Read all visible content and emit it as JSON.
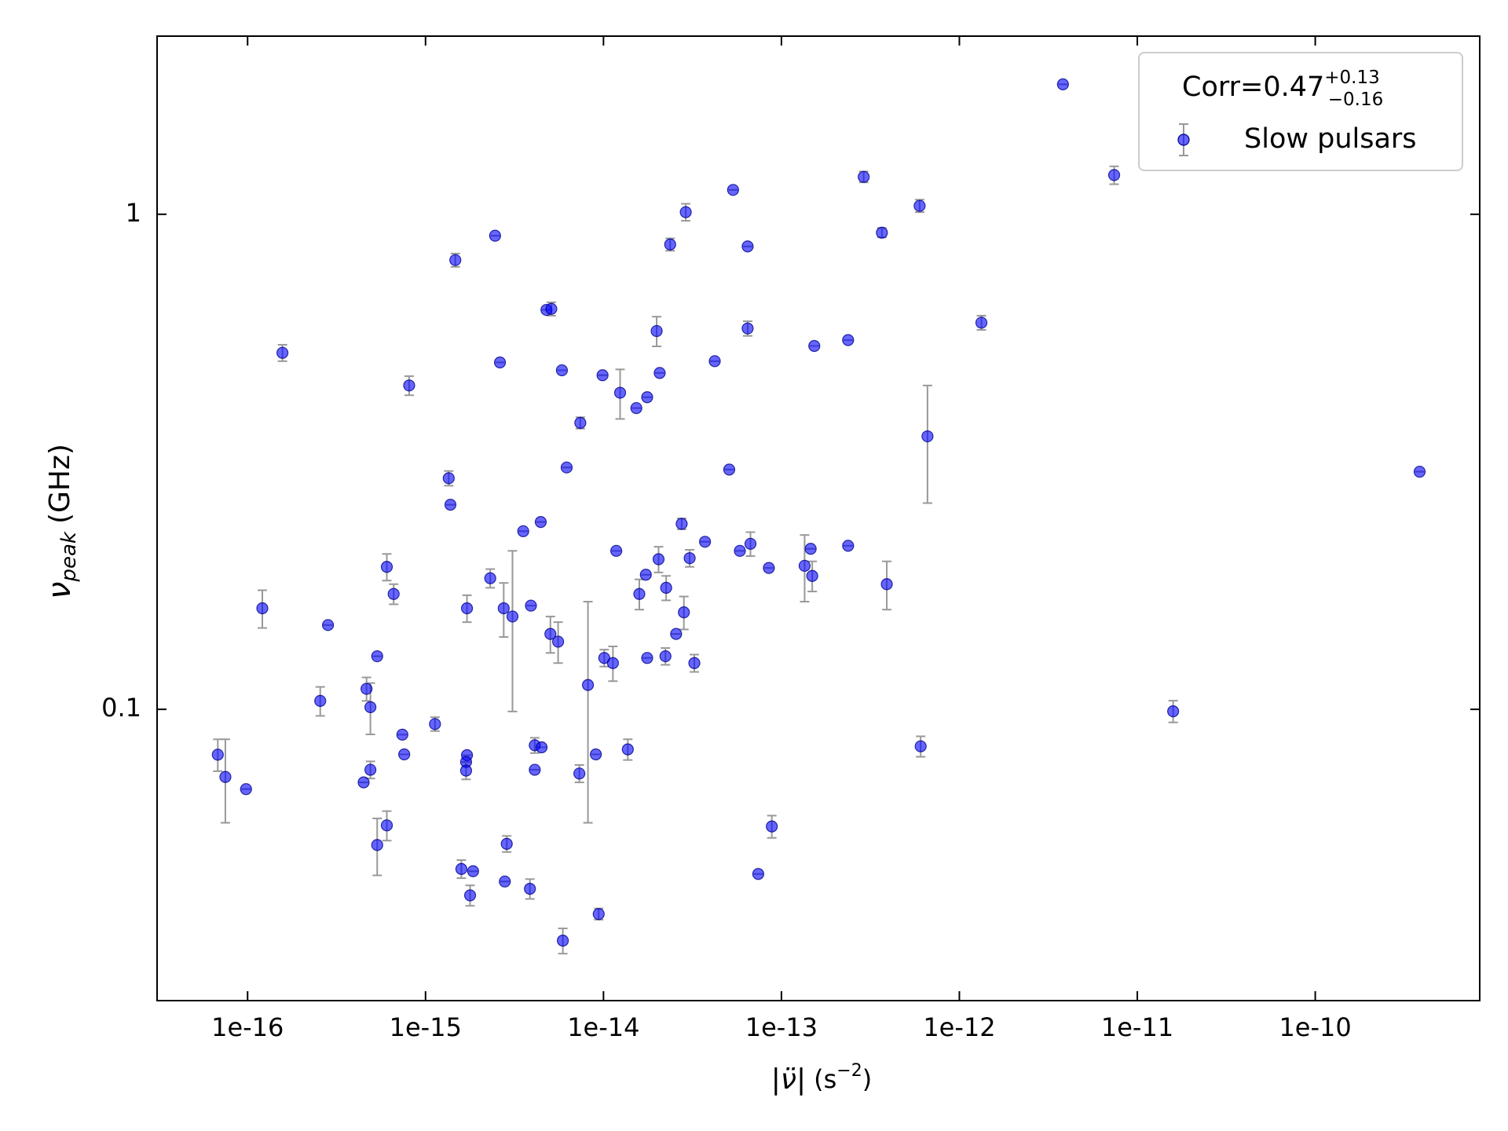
{
  "chart_data": {
    "type": "scatter",
    "xlabel": {
      "symbol": "|ν̈|",
      "unit_open": "(s",
      "unit_exp": "−2",
      "unit_close": ")"
    },
    "ylabel": {
      "symbol": "ν",
      "subscript": "peak",
      "unit": "(GHz)"
    },
    "xscale": "log",
    "yscale": "log",
    "xlim": [
      3.1e-17,
      8.4e-10
    ],
    "ylim": [
      0.0258,
      2.29
    ],
    "xticks": [
      {
        "value": 1e-16,
        "label": "1e-16"
      },
      {
        "value": 1e-15,
        "label": "1e-15"
      },
      {
        "value": 1e-14,
        "label": "1e-14"
      },
      {
        "value": 1e-13,
        "label": "1e-13"
      },
      {
        "value": 1e-12,
        "label": "1e-12"
      },
      {
        "value": 1e-11,
        "label": "1e-11"
      },
      {
        "value": 1e-10,
        "label": "1e-10"
      }
    ],
    "yticks": [
      0.1,
      1
    ],
    "legend": {
      "title": "Corr=0.47",
      "title_sup": "+0.13",
      "title_sub": "−0.16",
      "location": "upper right"
    },
    "series": [
      {
        "name": "Slow pulsars",
        "color": "#0000ff",
        "edge_color": "#00008b",
        "error_color": "#999999",
        "x": [
          6.8e-17,
          7.5e-17,
          9.8e-17,
          1.21e-16,
          1.57e-16,
          2.83e-16,
          2.56e-16,
          4.66e-16,
          4.9e-16,
          4.49e-16,
          4.9e-16,
          5.35e-16,
          6.06e-16,
          6.62e-16,
          6.06e-16,
          5.35e-16,
          7.41e-16,
          7.59e-16,
          8.09e-16,
          1.13e-15,
          1.35e-15,
          1.38e-15,
          1.47e-15,
          1.71e-15,
          1.71e-15,
          1.69e-15,
          1.69e-15,
          1.59e-15,
          1.85e-15,
          1.78e-15,
          2.31e-15,
          2.46e-15,
          2.62e-15,
          2.75e-15,
          3.08e-15,
          2.86e-15,
          2.79e-15,
          3.54e-15,
          3.91e-15,
          3.86e-15,
          4.11e-15,
          4.11e-15,
          4.49e-15,
          4.44e-15,
          4.78e-15,
          5.09e-15,
          5.03e-15,
          5.56e-15,
          5.84e-15,
          6.21e-15,
          5.91e-15,
          7.41e-15,
          7.32e-15,
          8.18e-15,
          9.06e-15,
          9.4e-15,
          9.88e-15,
          1.01e-14,
          1.13e-14,
          1.18e-14,
          1.24e-14,
          1.37e-14,
          1.53e-14,
          1.59e-14,
          1.73e-14,
          1.76e-14,
          1.76e-14,
          1.99e-14,
          2.04e-14,
          2.07e-14,
          2.25e-14,
          2.23e-14,
          2.37e-14,
          2.56e-14,
          2.75e-14,
          2.83e-14,
          2.9e-14,
          3.05e-14,
          3.24e-14,
          3.72e-14,
          4.22e-14,
          5.09e-14,
          5.35e-14,
          5.84e-14,
          6.46e-14,
          6.46e-14,
          6.7e-14,
          7.41e-14,
          8.5e-14,
          8.83e-14,
          1.35e-13,
          1.46e-13,
          1.49e-13,
          1.53e-13,
          2.37e-13,
          2.37e-13,
          2.9e-13,
          3.67e-13,
          3.91e-13,
          5.98e-13,
          6.06e-13,
          6.62e-13,
          1.33e-12,
          3.82e-12,
          7.41e-12,
          1.59e-11,
          3.86e-10
        ],
        "values": [
          0.081,
          0.073,
          0.069,
          0.16,
          0.525,
          0.148,
          0.104,
          0.11,
          0.101,
          0.0712,
          0.0755,
          0.128,
          0.194,
          0.171,
          0.0583,
          0.0532,
          0.0889,
          0.0811,
          0.451,
          0.0934,
          0.293,
          0.259,
          0.808,
          0.16,
          0.0808,
          0.0783,
          0.0752,
          0.0476,
          0.0471,
          0.0421,
          0.184,
          0.905,
          0.502,
          0.16,
          0.154,
          0.0535,
          0.0449,
          0.229,
          0.162,
          0.0434,
          0.0846,
          0.0755,
          0.0838,
          0.239,
          0.641,
          0.644,
          0.142,
          0.137,
          0.484,
          0.308,
          0.0341,
          0.379,
          0.0742,
          0.112,
          0.0811,
          0.0386,
          0.473,
          0.127,
          0.124,
          0.209,
          0.436,
          0.083,
          0.406,
          0.171,
          0.187,
          0.427,
          0.127,
          0.581,
          0.201,
          0.478,
          0.176,
          0.128,
          0.869,
          0.142,
          0.237,
          0.157,
          1.01,
          0.202,
          0.124,
          0.218,
          0.505,
          0.305,
          1.12,
          0.209,
          0.588,
          0.861,
          0.216,
          0.0465,
          0.193,
          0.058,
          0.195,
          0.211,
          0.186,
          0.542,
          0.557,
          0.214,
          1.19,
          0.918,
          0.179,
          1.04,
          0.0842,
          0.356,
          0.604,
          1.83,
          1.2,
          0.0991,
          0.302
        ],
        "errors": [
          0.006,
          0.014,
          0,
          0.014,
          0.02,
          0,
          0.007,
          0.006,
          0.012,
          0,
          0.003,
          0,
          0.012,
          0.008,
          0.004,
          0.007,
          0,
          0,
          0.02,
          0.003,
          0.01,
          0,
          0.025,
          0.01,
          0,
          0,
          0.003,
          0.002,
          0,
          0.002,
          0.008,
          0,
          0,
          0.02,
          0.055,
          0.002,
          0,
          0,
          0,
          0.002,
          0.003,
          0,
          0,
          0,
          0,
          0.02,
          0.012,
          0.013,
          0,
          0,
          0.002,
          0.01,
          0.003,
          0.053,
          0,
          0.001,
          0,
          0.005,
          0.01,
          0,
          0.05,
          0.004,
          0,
          0.012,
          0,
          0,
          0,
          0.04,
          0.012,
          0,
          0.01,
          0.005,
          0.025,
          0,
          0.006,
          0.012,
          0.04,
          0.008,
          0.005,
          0,
          0,
          0,
          0,
          0,
          0.02,
          0,
          0.012,
          0,
          0,
          0.003,
          0.03,
          0,
          0.013,
          0,
          0,
          0,
          0.03,
          0.02,
          0.02,
          0.03,
          0.004,
          0.095,
          0.02,
          0,
          0.05,
          0.005,
          0
        ]
      }
    ]
  }
}
